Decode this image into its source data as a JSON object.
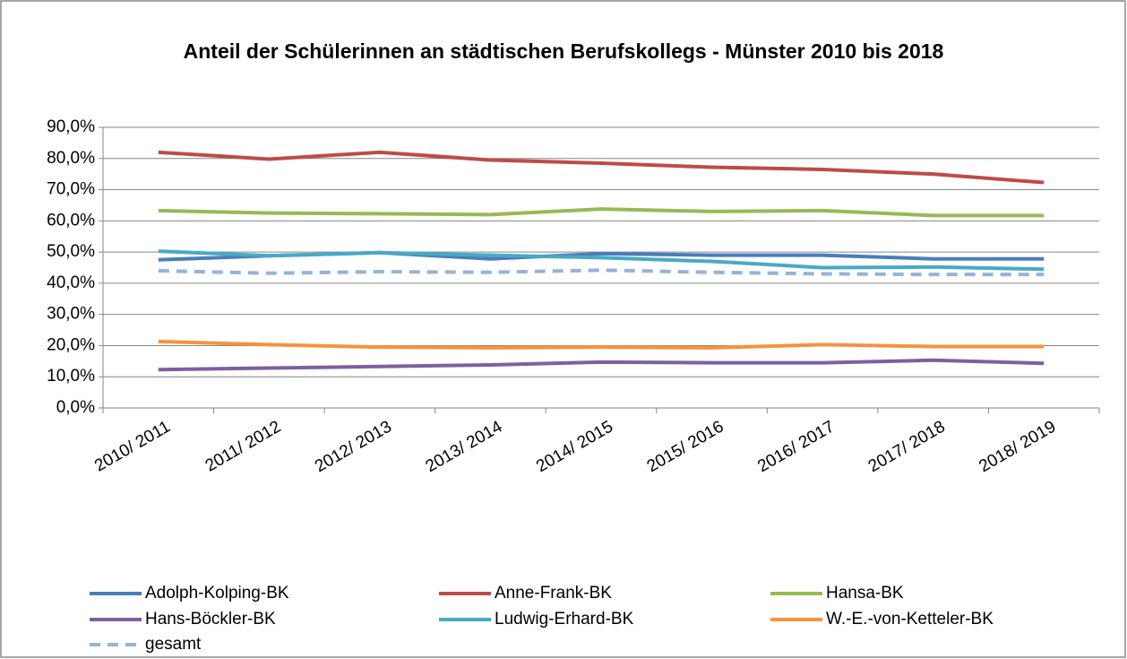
{
  "chart_data": {
    "type": "line",
    "title": "Anteil der Schülerinnen an städtischen Berufskollegs - Münster 2010 bis 2018",
    "categories": [
      "2010/ 2011",
      "2011/ 2012",
      "2012/ 2013",
      "2013/ 2014",
      "2014/ 2015",
      "2015/ 2016",
      "2016/ 2017",
      "2017/ 2018",
      "2018/ 2019"
    ],
    "series": [
      {
        "name": "Adolph-Kolping-BK",
        "color": "#4a7ebb",
        "values": [
          47.5,
          48.8,
          49.8,
          47.8,
          49.5,
          49.0,
          49.0,
          47.8,
          47.8
        ]
      },
      {
        "name": "Anne-Frank-BK",
        "color": "#be4b48",
        "values": [
          82.0,
          79.8,
          82.0,
          79.5,
          78.5,
          77.2,
          76.5,
          75.0,
          72.3
        ]
      },
      {
        "name": "Hansa-BK",
        "color": "#98b954",
        "values": [
          63.3,
          62.5,
          62.3,
          62.0,
          63.8,
          63.0,
          63.3,
          61.7,
          61.7
        ]
      },
      {
        "name": "Hans-Böckler-BK",
        "color": "#7d60a0",
        "values": [
          12.3,
          12.8,
          13.3,
          13.8,
          14.7,
          14.5,
          14.5,
          15.3,
          14.3
        ]
      },
      {
        "name": "Ludwig-Erhard-BK",
        "color": "#46aac5",
        "values": [
          50.3,
          48.8,
          49.8,
          49.0,
          48.2,
          47.0,
          45.0,
          45.2,
          44.5
        ]
      },
      {
        "name": "W.-E.-von-Ketteler-BK",
        "color": "#f69240",
        "values": [
          21.3,
          20.3,
          19.5,
          19.3,
          19.5,
          19.3,
          20.3,
          19.7,
          19.7
        ]
      },
      {
        "name": "gesamt",
        "color": "#95b3d7",
        "dashed": true,
        "values": [
          44.0,
          43.2,
          43.7,
          43.5,
          44.2,
          43.5,
          43.0,
          42.8,
          42.8
        ]
      }
    ],
    "ylim": [
      0,
      90
    ],
    "yticks": [
      {
        "value": 0,
        "label": "0,0%"
      },
      {
        "value": 10,
        "label": "10,0%"
      },
      {
        "value": 20,
        "label": "20,0%"
      },
      {
        "value": 30,
        "label": "30,0%"
      },
      {
        "value": 40,
        "label": "40,0%"
      },
      {
        "value": 50,
        "label": "50,0%"
      },
      {
        "value": 60,
        "label": "60,0%"
      },
      {
        "value": 70,
        "label": "70,0%"
      },
      {
        "value": 80,
        "label": "80,0%"
      },
      {
        "value": 90,
        "label": "90,0%"
      }
    ],
    "grid": true,
    "legend": "bottom"
  }
}
